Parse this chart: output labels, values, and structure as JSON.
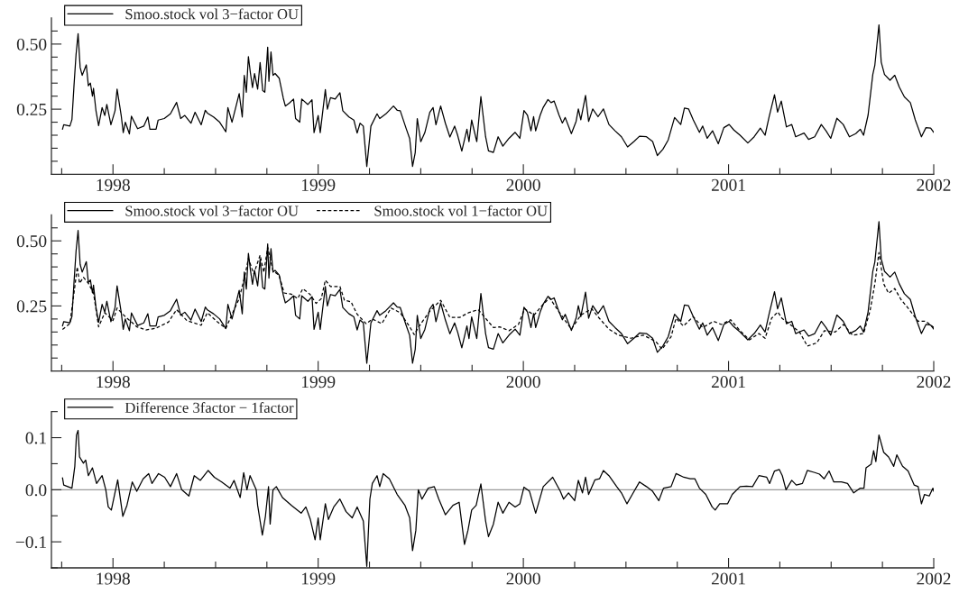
{
  "chart_data": [
    {
      "type": "line",
      "xlim": [
        1997.7,
        2002.0
      ],
      "ylim": [
        0,
        0.6
      ],
      "legend": "top left",
      "xticks": [
        {
          "value": 1997.75,
          "label": null
        },
        1998,
        {
          "value": 1998.25,
          "label": null
        },
        {
          "value": 1998.5,
          "label": null
        },
        {
          "value": 1998.75,
          "label": null
        },
        1999,
        {
          "value": 1999.25,
          "label": null
        },
        {
          "value": 1999.5,
          "label": null
        },
        {
          "value": 1999.75,
          "label": null
        },
        2000,
        {
          "value": 2000.25,
          "label": null
        },
        {
          "value": 2000.5,
          "label": null
        },
        {
          "value": 2000.75,
          "label": null
        },
        2001,
        {
          "value": 2001.25,
          "label": null
        },
        {
          "value": 2001.5,
          "label": null
        },
        {
          "value": 2001.75,
          "label": null
        },
        2002
      ],
      "yticks": [
        {
          "value": 0.05,
          "label": null
        },
        {
          "value": 0.1,
          "label": null
        },
        {
          "value": 0.15,
          "label": null
        },
        {
          "value": 0.2,
          "label": null
        },
        {
          "value": 0.25,
          "label": "0.25"
        },
        {
          "value": 0.3,
          "label": null
        },
        {
          "value": 0.35,
          "label": null
        },
        {
          "value": 0.4,
          "label": null
        },
        {
          "value": 0.45,
          "label": null
        },
        {
          "value": 0.5,
          "label": "0.50"
        },
        {
          "value": 0.55,
          "label": null
        }
      ],
      "series": [
        {
          "name": "Smoo.stock vol 3−factor OU",
          "color": "#000000",
          "line_style": "solid",
          "x": [
            1997.754,
            1997.76,
            1997.79,
            1997.8,
            1997.81,
            1997.82,
            1997.83,
            1997.84,
            1997.85,
            1997.86,
            1997.87,
            1997.88,
            1997.89,
            1997.9,
            1997.905,
            1997.917,
            1997.93,
            1997.947,
            1997.96,
            1997.97,
            1997.99,
            1998.01,
            1998.02,
            1998.04,
            1998.05,
            1998.06,
            1998.08,
            1998.09,
            1998.12,
            1998.15,
            1998.17,
            1998.18,
            1998.21,
            1998.22,
            1998.25,
            1998.28,
            1998.31,
            1998.33,
            1998.35,
            1998.38,
            1998.4,
            1998.43,
            1998.45,
            1998.46,
            1998.49,
            1998.52,
            1998.55,
            1998.56,
            1998.58,
            1998.6,
            1998.615,
            1998.63,
            1998.64,
            1998.65,
            1998.66,
            1998.67,
            1998.68,
            1998.69,
            1998.705,
            1998.717,
            1998.73,
            1998.74,
            1998.754,
            1998.76,
            1998.77,
            1998.78,
            1998.79,
            1998.81,
            1998.83,
            1998.84,
            1998.86,
            1998.88,
            1998.89,
            1998.91,
            1998.92,
            1998.95,
            1998.97,
            1998.98,
            1999.0,
            1999.01,
            1999.035,
            1999.045,
            1999.06,
            1999.083,
            1999.106,
            1999.12,
            1999.15,
            1999.174,
            1999.19,
            1999.204,
            1999.22,
            1999.237,
            1999.257,
            1999.287,
            1999.3,
            1999.33,
            1999.367,
            1999.385,
            1999.4,
            1999.43,
            1999.446,
            1999.46,
            1999.473,
            1999.483,
            1999.5,
            1999.52,
            1999.544,
            1999.56,
            1999.574,
            1999.597,
            1999.62,
            1999.642,
            1999.665,
            1999.68,
            1999.7,
            1999.725,
            1999.735,
            1999.748,
            1999.773,
            1999.793,
            1999.816,
            1999.83,
            1999.854,
            1999.877,
            1999.9,
            1999.93,
            1999.96,
            1999.983,
            2000.003,
            2000.02,
            2000.037,
            2000.05,
            2000.06,
            2000.082,
            2000.097,
            2000.12,
            2000.135,
            2000.15,
            2000.174,
            2000.19,
            2000.204,
            2000.234,
            2000.257,
            2000.268,
            2000.28,
            2000.303,
            2000.318,
            2000.338,
            2000.364,
            2000.39,
            2000.417,
            2000.447,
            2000.478,
            2000.508,
            2000.539,
            2000.566,
            2000.6,
            2000.63,
            2000.653,
            2000.68,
            2000.706,
            2000.737,
            2000.767,
            2000.785,
            2000.805,
            2000.828,
            2000.858,
            2000.874,
            2000.896,
            2000.922,
            2000.95,
            2000.977,
            2001.003,
            2001.026,
            2001.056,
            2001.094,
            2001.125,
            2001.155,
            2001.178,
            2001.198,
            2001.224,
            2001.239,
            2001.257,
            2001.282,
            2001.308,
            2001.327,
            2001.368,
            2001.39,
            2001.42,
            2001.452,
            2001.475,
            2001.498,
            2001.528,
            2001.559,
            2001.589,
            2001.62,
            2001.642,
            2001.658,
            2001.68,
            2001.703,
            2001.713,
            2001.733,
            2001.744,
            2001.76,
            2001.787,
            2001.81,
            2001.832,
            2001.857,
            2001.886,
            2001.91,
            2001.94,
            2001.962,
            2001.985,
            2002.0
          ],
          "values": [
            0.173,
            0.19,
            0.185,
            0.21,
            0.34,
            0.46,
            0.54,
            0.41,
            0.38,
            0.4,
            0.42,
            0.34,
            0.35,
            0.3,
            0.33,
            0.245,
            0.187,
            0.256,
            0.226,
            0.268,
            0.19,
            0.244,
            0.327,
            0.226,
            0.16,
            0.2,
            0.155,
            0.223,
            0.175,
            0.185,
            0.22,
            0.173,
            0.173,
            0.208,
            0.214,
            0.232,
            0.276,
            0.214,
            0.226,
            0.196,
            0.238,
            0.19,
            0.246,
            0.235,
            0.22,
            0.2,
            0.163,
            0.256,
            0.2,
            0.262,
            0.31,
            0.22,
            0.38,
            0.315,
            0.452,
            0.387,
            0.333,
            0.387,
            0.327,
            0.429,
            0.321,
            0.315,
            0.488,
            0.357,
            0.47,
            0.38,
            0.387,
            0.369,
            0.292,
            0.262,
            0.274,
            0.289,
            0.214,
            0.2,
            0.289,
            0.268,
            0.286,
            0.16,
            0.226,
            0.16,
            0.325,
            0.25,
            0.294,
            0.289,
            0.313,
            0.244,
            0.22,
            0.208,
            0.158,
            0.196,
            0.185,
            0.03,
            0.185,
            0.232,
            0.214,
            0.232,
            0.262,
            0.246,
            0.244,
            0.173,
            0.137,
            0.03,
            0.083,
            0.214,
            0.125,
            0.16,
            0.238,
            0.256,
            0.19,
            0.262,
            0.196,
            0.143,
            0.185,
            0.149,
            0.089,
            0.173,
            0.125,
            0.208,
            0.125,
            0.298,
            0.144,
            0.09,
            0.084,
            0.144,
            0.108,
            0.138,
            0.161,
            0.138,
            0.245,
            0.227,
            0.167,
            0.221,
            0.167,
            0.227,
            0.257,
            0.287,
            0.275,
            0.281,
            0.227,
            0.197,
            0.218,
            0.156,
            0.203,
            0.251,
            0.209,
            0.303,
            0.203,
            0.251,
            0.221,
            0.251,
            0.191,
            0.167,
            0.144,
            0.105,
            0.126,
            0.146,
            0.144,
            0.126,
            0.072,
            0.096,
            0.132,
            0.218,
            0.191,
            0.254,
            0.251,
            0.209,
            0.161,
            0.185,
            0.138,
            0.167,
            0.117,
            0.179,
            0.191,
            0.17,
            0.15,
            0.12,
            0.144,
            0.177,
            0.15,
            0.221,
            0.305,
            0.239,
            0.281,
            0.182,
            0.191,
            0.144,
            0.158,
            0.134,
            0.144,
            0.191,
            0.167,
            0.138,
            0.215,
            0.191,
            0.144,
            0.156,
            0.173,
            0.15,
            0.227,
            0.383,
            0.419,
            0.574,
            0.431,
            0.383,
            0.361,
            0.38,
            0.335,
            0.297,
            0.275,
            0.209,
            0.144,
            0.179,
            0.177,
            0.161
          ]
        }
      ]
    },
    {
      "type": "line",
      "xlim": [
        1997.7,
        2002.0
      ],
      "ylim": [
        0,
        0.6
      ],
      "legend": "top left",
      "xticks": [
        {
          "value": 1997.75,
          "label": null
        },
        1998,
        {
          "value": 1998.25,
          "label": null
        },
        {
          "value": 1998.5,
          "label": null
        },
        {
          "value": 1998.75,
          "label": null
        },
        1999,
        {
          "value": 1999.25,
          "label": null
        },
        {
          "value": 1999.5,
          "label": null
        },
        {
          "value": 1999.75,
          "label": null
        },
        2000,
        {
          "value": 2000.25,
          "label": null
        },
        {
          "value": 2000.5,
          "label": null
        },
        {
          "value": 2000.75,
          "label": null
        },
        2001,
        {
          "value": 2001.25,
          "label": null
        },
        {
          "value": 2001.5,
          "label": null
        },
        {
          "value": 2001.75,
          "label": null
        },
        2002
      ],
      "yticks": [
        {
          "value": 0.05,
          "label": null
        },
        {
          "value": 0.1,
          "label": null
        },
        {
          "value": 0.15,
          "label": null
        },
        {
          "value": 0.2,
          "label": null
        },
        {
          "value": 0.25,
          "label": "0.25"
        },
        {
          "value": 0.3,
          "label": null
        },
        {
          "value": 0.35,
          "label": null
        },
        {
          "value": 0.4,
          "label": null
        },
        {
          "value": 0.45,
          "label": null
        },
        {
          "value": 0.5,
          "label": "0.50"
        },
        {
          "value": 0.55,
          "label": null
        }
      ],
      "series": [
        {
          "name": "Smoo.stock vol 3−factor OU",
          "color": "#000000",
          "line_style": "solid",
          "x": [
            1997.754,
            1997.76,
            1997.79,
            1997.8,
            1997.81,
            1997.82,
            1997.83,
            1997.84,
            1997.85,
            1997.86,
            1997.87,
            1997.88,
            1997.89,
            1997.9,
            1997.905,
            1997.917,
            1997.93,
            1997.947,
            1997.96,
            1997.97,
            1997.99,
            1998.01,
            1998.02,
            1998.04,
            1998.05,
            1998.06,
            1998.08,
            1998.09,
            1998.12,
            1998.15,
            1998.17,
            1998.18,
            1998.21,
            1998.22,
            1998.25,
            1998.28,
            1998.31,
            1998.33,
            1998.35,
            1998.38,
            1998.4,
            1998.43,
            1998.45,
            1998.46,
            1998.49,
            1998.52,
            1998.55,
            1998.56,
            1998.58,
            1998.6,
            1998.615,
            1998.63,
            1998.64,
            1998.65,
            1998.66,
            1998.67,
            1998.68,
            1998.69,
            1998.705,
            1998.717,
            1998.73,
            1998.74,
            1998.754,
            1998.76,
            1998.77,
            1998.78,
            1998.79,
            1998.81,
            1998.83,
            1998.84,
            1998.86,
            1998.88,
            1998.89,
            1998.91,
            1998.92,
            1998.95,
            1998.97,
            1998.98,
            1999.0,
            1999.01,
            1999.035,
            1999.045,
            1999.06,
            1999.083,
            1999.106,
            1999.12,
            1999.15,
            1999.174,
            1999.19,
            1999.204,
            1999.22,
            1999.237,
            1999.257,
            1999.287,
            1999.3,
            1999.33,
            1999.367,
            1999.385,
            1999.4,
            1999.43,
            1999.446,
            1999.46,
            1999.473,
            1999.483,
            1999.5,
            1999.52,
            1999.544,
            1999.56,
            1999.574,
            1999.597,
            1999.62,
            1999.642,
            1999.665,
            1999.68,
            1999.7,
            1999.725,
            1999.735,
            1999.748,
            1999.773,
            1999.793,
            1999.816,
            1999.83,
            1999.854,
            1999.877,
            1999.9,
            1999.93,
            1999.96,
            1999.983,
            2000.003,
            2000.02,
            2000.037,
            2000.05,
            2000.06,
            2000.082,
            2000.097,
            2000.12,
            2000.135,
            2000.15,
            2000.174,
            2000.19,
            2000.204,
            2000.234,
            2000.257,
            2000.268,
            2000.28,
            2000.303,
            2000.318,
            2000.338,
            2000.364,
            2000.39,
            2000.417,
            2000.447,
            2000.478,
            2000.508,
            2000.539,
            2000.566,
            2000.6,
            2000.63,
            2000.653,
            2000.68,
            2000.706,
            2000.737,
            2000.767,
            2000.785,
            2000.805,
            2000.828,
            2000.858,
            2000.874,
            2000.896,
            2000.922,
            2000.95,
            2000.977,
            2001.003,
            2001.026,
            2001.056,
            2001.094,
            2001.125,
            2001.155,
            2001.178,
            2001.198,
            2001.224,
            2001.239,
            2001.257,
            2001.282,
            2001.308,
            2001.327,
            2001.368,
            2001.39,
            2001.42,
            2001.452,
            2001.475,
            2001.498,
            2001.528,
            2001.559,
            2001.589,
            2001.62,
            2001.642,
            2001.658,
            2001.68,
            2001.703,
            2001.713,
            2001.733,
            2001.744,
            2001.76,
            2001.787,
            2001.81,
            2001.832,
            2001.857,
            2001.886,
            2001.91,
            2001.94,
            2001.962,
            2001.985,
            2002.0
          ],
          "values": [
            0.173,
            0.19,
            0.185,
            0.21,
            0.34,
            0.46,
            0.54,
            0.41,
            0.38,
            0.4,
            0.42,
            0.34,
            0.35,
            0.3,
            0.33,
            0.245,
            0.187,
            0.256,
            0.226,
            0.268,
            0.19,
            0.244,
            0.327,
            0.226,
            0.16,
            0.2,
            0.155,
            0.223,
            0.175,
            0.185,
            0.22,
            0.173,
            0.173,
            0.208,
            0.214,
            0.232,
            0.276,
            0.214,
            0.226,
            0.196,
            0.238,
            0.19,
            0.246,
            0.235,
            0.22,
            0.2,
            0.163,
            0.256,
            0.2,
            0.262,
            0.31,
            0.22,
            0.38,
            0.315,
            0.452,
            0.387,
            0.333,
            0.387,
            0.327,
            0.429,
            0.321,
            0.315,
            0.488,
            0.357,
            0.47,
            0.38,
            0.387,
            0.369,
            0.292,
            0.262,
            0.274,
            0.289,
            0.214,
            0.2,
            0.289,
            0.268,
            0.286,
            0.16,
            0.226,
            0.16,
            0.325,
            0.25,
            0.294,
            0.289,
            0.313,
            0.244,
            0.22,
            0.208,
            0.158,
            0.196,
            0.185,
            0.03,
            0.185,
            0.232,
            0.214,
            0.232,
            0.262,
            0.246,
            0.244,
            0.173,
            0.137,
            0.03,
            0.083,
            0.214,
            0.125,
            0.16,
            0.238,
            0.256,
            0.19,
            0.262,
            0.196,
            0.143,
            0.185,
            0.149,
            0.089,
            0.173,
            0.125,
            0.208,
            0.125,
            0.298,
            0.144,
            0.09,
            0.084,
            0.144,
            0.108,
            0.138,
            0.161,
            0.138,
            0.245,
            0.227,
            0.167,
            0.221,
            0.167,
            0.227,
            0.257,
            0.287,
            0.275,
            0.281,
            0.227,
            0.197,
            0.218,
            0.156,
            0.203,
            0.251,
            0.209,
            0.303,
            0.203,
            0.251,
            0.221,
            0.251,
            0.191,
            0.167,
            0.144,
            0.105,
            0.126,
            0.146,
            0.144,
            0.126,
            0.072,
            0.096,
            0.132,
            0.218,
            0.191,
            0.254,
            0.251,
            0.209,
            0.161,
            0.185,
            0.138,
            0.167,
            0.117,
            0.179,
            0.191,
            0.17,
            0.15,
            0.12,
            0.144,
            0.177,
            0.15,
            0.221,
            0.305,
            0.239,
            0.281,
            0.182,
            0.191,
            0.144,
            0.158,
            0.134,
            0.144,
            0.191,
            0.167,
            0.138,
            0.215,
            0.191,
            0.144,
            0.156,
            0.173,
            0.15,
            0.227,
            0.383,
            0.419,
            0.574,
            0.431,
            0.383,
            0.361,
            0.38,
            0.335,
            0.297,
            0.275,
            0.209,
            0.144,
            0.179,
            0.177,
            0.161
          ]
        },
        {
          "name": "Smoo.stock vol 1−factor OU",
          "color": "#000000",
          "line_style": "dashed",
          "x": [
            1997.754,
            1997.79,
            1997.81,
            1997.826,
            1997.837,
            1997.856,
            1997.88,
            1997.905,
            1997.93,
            1997.96,
            1998.0,
            1998.02,
            1998.056,
            1998.116,
            1998.16,
            1998.207,
            1998.27,
            1998.31,
            1998.36,
            1998.43,
            1998.46,
            1998.51,
            1998.55,
            1998.58,
            1998.615,
            1998.645,
            1998.66,
            1998.686,
            1998.717,
            1998.735,
            1998.754,
            1998.78,
            1998.81,
            1998.834,
            1998.87,
            1998.9,
            1998.925,
            1998.96,
            1998.99,
            1999.015,
            1999.035,
            1999.06,
            1999.106,
            1999.128,
            1999.16,
            1999.19,
            1999.234,
            1999.264,
            1999.31,
            1999.355,
            1999.4,
            1999.446,
            1999.468,
            1999.49,
            1999.544,
            1999.597,
            1999.642,
            1999.69,
            1999.733,
            1999.78,
            1999.854,
            1999.884,
            1999.93,
            1999.976,
            2000.006,
            2000.052,
            2000.097,
            2000.128,
            2000.174,
            2000.234,
            2000.28,
            2000.333,
            2000.37,
            2000.417,
            2000.463,
            2000.524,
            2000.584,
            2000.645,
            2000.676,
            2000.72,
            2000.744,
            2000.78,
            2000.828,
            2000.874,
            2000.927,
            2000.965,
            2001.01,
            2001.056,
            2001.102,
            2001.148,
            2001.178,
            2001.21,
            2001.24,
            2001.26,
            2001.3,
            2001.346,
            2001.384,
            2001.43,
            2001.467,
            2001.52,
            2001.56,
            2001.604,
            2001.658,
            2001.69,
            2001.713,
            2001.733,
            2001.756,
            2001.78,
            2001.81,
            2001.84,
            2001.878,
            2001.924,
            2001.962,
            2002.0
          ],
          "values": [
            0.16,
            0.182,
            0.3,
            0.4,
            0.337,
            0.36,
            0.337,
            0.3,
            0.17,
            0.224,
            0.194,
            0.242,
            0.212,
            0.17,
            0.158,
            0.164,
            0.188,
            0.236,
            0.194,
            0.176,
            0.224,
            0.188,
            0.164,
            0.218,
            0.278,
            0.373,
            0.433,
            0.373,
            0.445,
            0.379,
            0.475,
            0.385,
            0.367,
            0.3,
            0.295,
            0.278,
            0.316,
            0.295,
            0.26,
            0.278,
            0.349,
            0.325,
            0.325,
            0.272,
            0.266,
            0.218,
            0.182,
            0.2,
            0.182,
            0.242,
            0.224,
            0.17,
            0.14,
            0.17,
            0.23,
            0.272,
            0.206,
            0.206,
            0.224,
            0.236,
            0.167,
            0.17,
            0.155,
            0.179,
            0.239,
            0.215,
            0.257,
            0.281,
            0.227,
            0.161,
            0.215,
            0.239,
            0.203,
            0.161,
            0.138,
            0.126,
            0.138,
            0.114,
            0.084,
            0.132,
            0.203,
            0.173,
            0.209,
            0.167,
            0.191,
            0.179,
            0.197,
            0.155,
            0.12,
            0.144,
            0.126,
            0.203,
            0.227,
            0.203,
            0.179,
            0.15,
            0.096,
            0.108,
            0.155,
            0.15,
            0.179,
            0.138,
            0.144,
            0.233,
            0.335,
            0.455,
            0.335,
            0.299,
            0.317,
            0.275,
            0.239,
            0.191,
            0.191,
            0.167
          ]
        }
      ]
    },
    {
      "type": "line",
      "xlim": [
        1997.7,
        2002.0
      ],
      "ylim": [
        -0.15,
        0.15
      ],
      "legend": "top left",
      "xticks": [
        {
          "value": 1997.75,
          "label": null
        },
        1998,
        {
          "value": 1998.25,
          "label": null
        },
        {
          "value": 1998.5,
          "label": null
        },
        {
          "value": 1998.75,
          "label": null
        },
        1999,
        {
          "value": 1999.25,
          "label": null
        },
        {
          "value": 1999.5,
          "label": null
        },
        {
          "value": 1999.75,
          "label": null
        },
        2000,
        {
          "value": 2000.25,
          "label": null
        },
        {
          "value": 2000.5,
          "label": null
        },
        {
          "value": 2000.75,
          "label": null
        },
        2001,
        {
          "value": 2001.25,
          "label": null
        },
        {
          "value": 2001.5,
          "label": null
        },
        {
          "value": 2001.75,
          "label": null
        },
        2002
      ],
      "yticks": [
        {
          "value": -0.15,
          "label": null
        },
        {
          "value": -0.1,
          "label": "−0.1"
        },
        {
          "value": -0.05,
          "label": null
        },
        {
          "value": 0,
          "label": "0.0"
        },
        {
          "value": 0.05,
          "label": null
        },
        {
          "value": 0.1,
          "label": "0.1"
        },
        {
          "value": 0.15,
          "label": null
        }
      ],
      "ref_lines": [
        {
          "axis": "y",
          "value": 0,
          "color": "#999999"
        }
      ],
      "series": [
        {
          "name": "Difference 3factor − 1factor",
          "color": "#000000",
          "line_style": "solid",
          "x": [
            1997.754,
            1997.76,
            1997.8,
            1997.814,
            1997.822,
            1997.83,
            1997.837,
            1997.856,
            1997.867,
            1997.88,
            1997.9,
            1997.92,
            1997.947,
            1997.965,
            1997.977,
            1997.992,
            1998.023,
            1998.048,
            1998.068,
            1998.094,
            1998.116,
            1998.147,
            1998.174,
            1998.19,
            1998.222,
            1998.252,
            1998.28,
            1998.31,
            1998.335,
            1998.37,
            1998.396,
            1998.426,
            1998.464,
            1998.494,
            1998.53,
            1998.57,
            1998.59,
            1998.62,
            1998.637,
            1998.653,
            1998.668,
            1998.698,
            1998.705,
            1998.728,
            1998.743,
            1998.758,
            1998.766,
            1998.78,
            1998.796,
            1998.826,
            1998.87,
            1998.917,
            1998.94,
            1998.962,
            1998.985,
            1999.0,
            1999.01,
            1999.035,
            1999.05,
            1999.076,
            1999.106,
            1999.136,
            1999.166,
            1999.19,
            1999.22,
            1999.237,
            1999.252,
            1999.264,
            1999.287,
            1999.3,
            1999.317,
            1999.347,
            1999.385,
            1999.423,
            1999.446,
            1999.46,
            1999.476,
            1999.488,
            1999.506,
            1999.536,
            1999.566,
            1999.588,
            1999.62,
            1999.657,
            1999.687,
            1999.713,
            1999.73,
            1999.748,
            1999.77,
            1999.793,
            1999.816,
            1999.83,
            1999.854,
            1999.877,
            1999.9,
            1999.93,
            1999.96,
            1999.983,
            2000.003,
            2000.03,
            2000.06,
            2000.097,
            2000.143,
            2000.18,
            2000.196,
            2000.22,
            2000.25,
            2000.268,
            2000.288,
            2000.303,
            2000.318,
            2000.349,
            2000.371,
            2000.39,
            2000.417,
            2000.455,
            2000.478,
            2000.505,
            2000.531,
            2000.566,
            2000.6,
            2000.63,
            2000.66,
            2000.683,
            2000.72,
            2000.744,
            2000.782,
            2000.813,
            2000.836,
            2000.858,
            2000.889,
            2000.92,
            2000.935,
            2000.957,
            2000.995,
            2001.018,
            2001.056,
            2001.087,
            2001.117,
            2001.148,
            2001.186,
            2001.2,
            2001.224,
            2001.247,
            2001.262,
            2001.28,
            2001.308,
            2001.33,
            2001.36,
            2001.384,
            2001.42,
            2001.443,
            2001.466,
            2001.49,
            2001.513,
            2001.55,
            2001.58,
            2001.61,
            2001.642,
            2001.66,
            2001.67,
            2001.695,
            2001.707,
            2001.718,
            2001.733,
            2001.756,
            2001.78,
            2001.805,
            2001.82,
            2001.848,
            2001.875,
            2001.905,
            2001.924,
            2001.94,
            2001.955,
            2001.978,
            2001.996,
            2002.0
          ],
          "values": [
            0.023,
            0.009,
            0.003,
            0.045,
            0.105,
            0.114,
            0.063,
            0.051,
            0.057,
            0.027,
            0.042,
            0.012,
            0.027,
            0.0,
            -0.033,
            -0.039,
            0.019,
            -0.051,
            -0.03,
            0.015,
            -0.003,
            0.021,
            0.031,
            0.012,
            0.031,
            0.024,
            0.006,
            0.031,
            0.0,
            -0.012,
            0.027,
            0.018,
            0.037,
            0.024,
            0.015,
            0.003,
            0.018,
            -0.015,
            0.033,
            0.0,
            0.027,
            0.0,
            -0.03,
            -0.087,
            -0.051,
            0.006,
            -0.066,
            0.0,
            0.006,
            -0.015,
            -0.03,
            -0.045,
            -0.033,
            -0.057,
            -0.096,
            -0.054,
            -0.096,
            -0.027,
            -0.057,
            -0.033,
            -0.018,
            -0.042,
            -0.054,
            -0.033,
            -0.06,
            -0.147,
            -0.018,
            0.012,
            0.027,
            0.006,
            0.031,
            0.021,
            -0.009,
            -0.03,
            -0.054,
            -0.117,
            -0.078,
            0.0,
            -0.018,
            0.003,
            0.006,
            -0.018,
            -0.048,
            -0.03,
            -0.024,
            -0.105,
            -0.078,
            -0.039,
            -0.03,
            0.011,
            -0.06,
            -0.09,
            -0.066,
            -0.024,
            -0.045,
            -0.024,
            -0.033,
            -0.027,
            0.005,
            -0.003,
            -0.045,
            0.006,
            0.024,
            -0.003,
            -0.018,
            -0.006,
            -0.021,
            0.018,
            -0.006,
            0.024,
            -0.009,
            0.019,
            0.021,
            0.037,
            0.027,
            0.006,
            -0.006,
            -0.027,
            -0.009,
            0.015,
            0.006,
            -0.003,
            -0.021,
            0.003,
            0.006,
            0.031,
            0.024,
            0.021,
            0.021,
            0.003,
            -0.009,
            -0.033,
            -0.039,
            -0.027,
            -0.027,
            -0.009,
            0.006,
            0.007,
            0.006,
            0.027,
            0.024,
            0.012,
            0.036,
            0.039,
            0.027,
            0.0,
            0.018,
            0.009,
            0.012,
            0.037,
            0.033,
            0.03,
            0.021,
            0.036,
            0.015,
            0.015,
            0.012,
            -0.006,
            0.003,
            0.003,
            0.042,
            0.049,
            0.075,
            0.054,
            0.105,
            0.072,
            0.063,
            0.045,
            0.067,
            0.045,
            0.036,
            0.009,
            0.006,
            -0.027,
            -0.009,
            -0.012,
            0.003,
            -0.003
          ]
        }
      ]
    }
  ]
}
